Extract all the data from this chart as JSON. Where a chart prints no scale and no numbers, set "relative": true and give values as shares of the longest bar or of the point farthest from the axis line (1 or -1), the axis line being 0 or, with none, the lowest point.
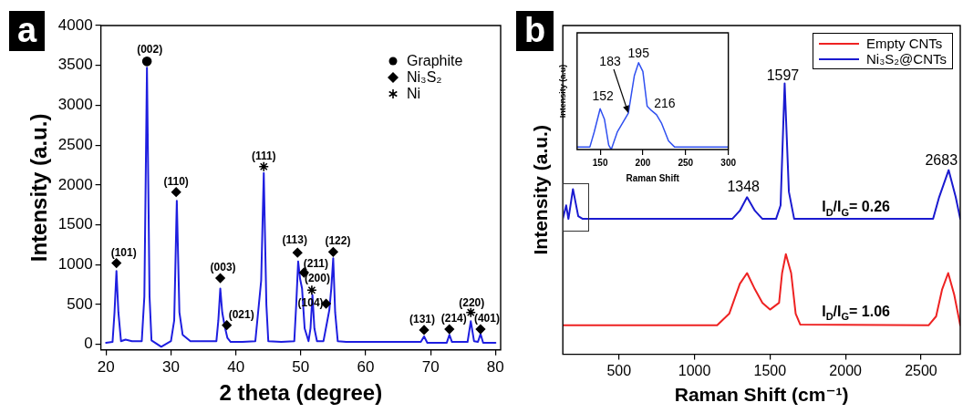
{
  "chart_data": [
    {
      "type": "line",
      "xlabel": "2 theta (degree)",
      "ylabel": "Intensity (a.u.)",
      "xlim": [
        19.2,
        80.8
      ],
      "ylim": [
        -70,
        4000
      ],
      "xticks": [
        20,
        30,
        40,
        50,
        60,
        70,
        80
      ],
      "yticks": [
        0,
        500,
        1000,
        1500,
        2000,
        2500,
        3000,
        3500,
        4000
      ],
      "legend": "top right",
      "annotations": [
        "a",
        {
          "text": "(101)",
          "x": 21.6,
          "y": 1020
        },
        {
          "text": "(002)",
          "x": 26.3,
          "y": 3550
        },
        {
          "text": "(110)",
          "x": 30.8,
          "y": 1910
        },
        {
          "text": "(003)",
          "x": 37.6,
          "y": 830
        },
        {
          "text": "(021)",
          "x": 38.6,
          "y": 240
        },
        {
          "text": "(111)",
          "x": 44.3,
          "y": 2230
        },
        {
          "text": "(113)",
          "x": 49.5,
          "y": 1150
        },
        {
          "text": "(211)",
          "x": 50.5,
          "y": 900
        },
        {
          "text": "(200)",
          "x": 51.7,
          "y": 680
        },
        {
          "text": "(104)",
          "x": 53.9,
          "y": 510
        },
        {
          "text": "(122)",
          "x": 55.0,
          "y": 1160
        },
        {
          "text": "(131)",
          "x": 69.0,
          "y": 180
        },
        {
          "text": "(214)",
          "x": 72.9,
          "y": 190
        },
        {
          "text": "(220)",
          "x": 76.2,
          "y": 400
        },
        {
          "text": "(401)",
          "x": 77.7,
          "y": 190
        }
      ],
      "series": [
        {
          "type": "line",
          "color": "#1e1ee0",
          "x": [
            20,
            21,
            21.3,
            21.6,
            21.9,
            22.3,
            23,
            24,
            25.5,
            25.9,
            26.3,
            26.7,
            27,
            28.5,
            30,
            30.5,
            30.9,
            31.3,
            31.8,
            33,
            35,
            37,
            37.3,
            37.6,
            37.9,
            38.3,
            38.7,
            39.2,
            41,
            43,
            43.9,
            44.3,
            44.7,
            45,
            47,
            49,
            49.3,
            49.6,
            49.9,
            50.2,
            50.6,
            51.2,
            51.5,
            51.8,
            52.1,
            52.5,
            53.5,
            54.1,
            54.4,
            54.7,
            55,
            55.3,
            55.7,
            57,
            60,
            65,
            68.5,
            69,
            69.5,
            72.5,
            72.9,
            73.3,
            75.7,
            76.2,
            76.7,
            77.3,
            77.7,
            78.1,
            80
          ],
          "values": [
            20,
            30,
            400,
            920,
            400,
            40,
            60,
            40,
            40,
            600,
            3470,
            600,
            50,
            -30,
            40,
            300,
            1800,
            400,
            120,
            40,
            40,
            40,
            300,
            700,
            400,
            220,
            80,
            30,
            30,
            40,
            800,
            2150,
            500,
            40,
            30,
            40,
            500,
            1040,
            820,
            700,
            200,
            40,
            200,
            620,
            200,
            40,
            40,
            300,
            430,
            700,
            1080,
            400,
            40,
            30,
            30,
            30,
            30,
            100,
            20,
            20,
            120,
            30,
            30,
            290,
            40,
            30,
            130,
            20,
            20
          ]
        },
        {
          "type": "scatter",
          "name": "Graphite",
          "color": "#000000",
          "marker": "circle",
          "x": [
            26.3
          ],
          "values": [
            3550
          ]
        },
        {
          "type": "scatter",
          "name": "Ni₃S₂",
          "color": "#000000",
          "marker": "diamond",
          "x": [
            21.6,
            30.8,
            37.6,
            38.6,
            49.5,
            50.5,
            53.9,
            55.0,
            69.0,
            72.9,
            77.7
          ],
          "values": [
            1020,
            1910,
            830,
            240,
            1150,
            900,
            510,
            1160,
            180,
            190,
            190
          ]
        },
        {
          "type": "scatter",
          "name": "Ni",
          "color": "#000000",
          "marker": "cross",
          "x": [
            44.3,
            51.7,
            76.2
          ],
          "values": [
            2230,
            680,
            400
          ]
        }
      ]
    },
    {
      "type": "line",
      "relative": true,
      "xlabel": "Raman Shift (cm⁻¹)",
      "ylabel": "Intensity (a.u.)",
      "xlim": [
        128,
        2760
      ],
      "xticks": [
        500,
        1000,
        1500,
        2000,
        2500
      ],
      "tick_labels": "x",
      "legend": "top right",
      "annotations": [
        "b",
        {
          "text": "1348",
          "x": 1348,
          "y": 0.58
        },
        {
          "text": "1597",
          "x": 1597,
          "y": 1
        },
        {
          "text": "2683",
          "x": 2683,
          "y": 0.68
        },
        {
          "text": "I$_{D}$/I$_{G}$= 0.26",
          "x": 2069,
          "y": 0.5
        },
        {
          "text": "I$_{D}$/I$_{G}$= 1.06",
          "x": 2069,
          "y": 0.107
        }
      ],
      "series": [
        {
          "name": "Empty CNTs",
          "color": "#ee2222",
          "x": [
            128,
            1150,
            1230,
            1300,
            1348,
            1400,
            1450,
            1500,
            1560,
            1580,
            1605,
            1640,
            1670,
            1700,
            2550,
            2600,
            2640,
            2680,
            2720,
            2760
          ],
          "values": [
            0.107,
            0.107,
            0.15,
            0.26,
            0.3,
            0.24,
            0.19,
            0.165,
            0.19,
            0.3,
            0.37,
            0.3,
            0.15,
            0.11,
            0.107,
            0.14,
            0.24,
            0.3,
            0.22,
            0.107
          ]
        },
        {
          "name": "Ni₃S₂@CNTs",
          "color": "#1a1ad0",
          "x": [
            128,
            150,
            165,
            195,
            230,
            260,
            1250,
            1300,
            1348,
            1400,
            1450,
            1540,
            1570,
            1597,
            1625,
            1660,
            2580,
            2620,
            2683,
            2730,
            2760
          ],
          "values": [
            0.5,
            0.55,
            0.5,
            0.61,
            0.51,
            0.5,
            0.5,
            0.53,
            0.58,
            0.53,
            0.5,
            0.5,
            0.55,
            1,
            0.6,
            0.5,
            0.5,
            0.58,
            0.68,
            0.58,
            0.5
          ]
        }
      ]
    },
    {
      "type": "line",
      "relative": true,
      "xlabel": "Raman Shift",
      "ylabel": "Intensity (a.u)",
      "xlim": [
        123,
        300
      ],
      "xticks": [
        150,
        200,
        250,
        300
      ],
      "tick_labels": "x",
      "annotations": [
        {
          "text": "152",
          "x": 150,
          "y": 0.47
        },
        {
          "text": "183",
          "x": 183,
          "y": 0.42
        },
        {
          "text": "195",
          "x": 195,
          "y": 1
        },
        {
          "text": "216",
          "x": 216,
          "y": 0.4
        }
      ],
      "series": [
        {
          "color": "#3050f0",
          "x": [
            123,
            138,
            143,
            150,
            155,
            160,
            163,
            170,
            183,
            190,
            195,
            200,
            205,
            210,
            216,
            222,
            230,
            237,
            300
          ],
          "values": [
            0.03,
            0.03,
            0.2,
            0.47,
            0.35,
            0.05,
            0,
            0.2,
            0.42,
            0.85,
            1,
            0.9,
            0.5,
            0.45,
            0.4,
            0.3,
            0.1,
            0.03,
            0.03
          ]
        }
      ]
    }
  ]
}
